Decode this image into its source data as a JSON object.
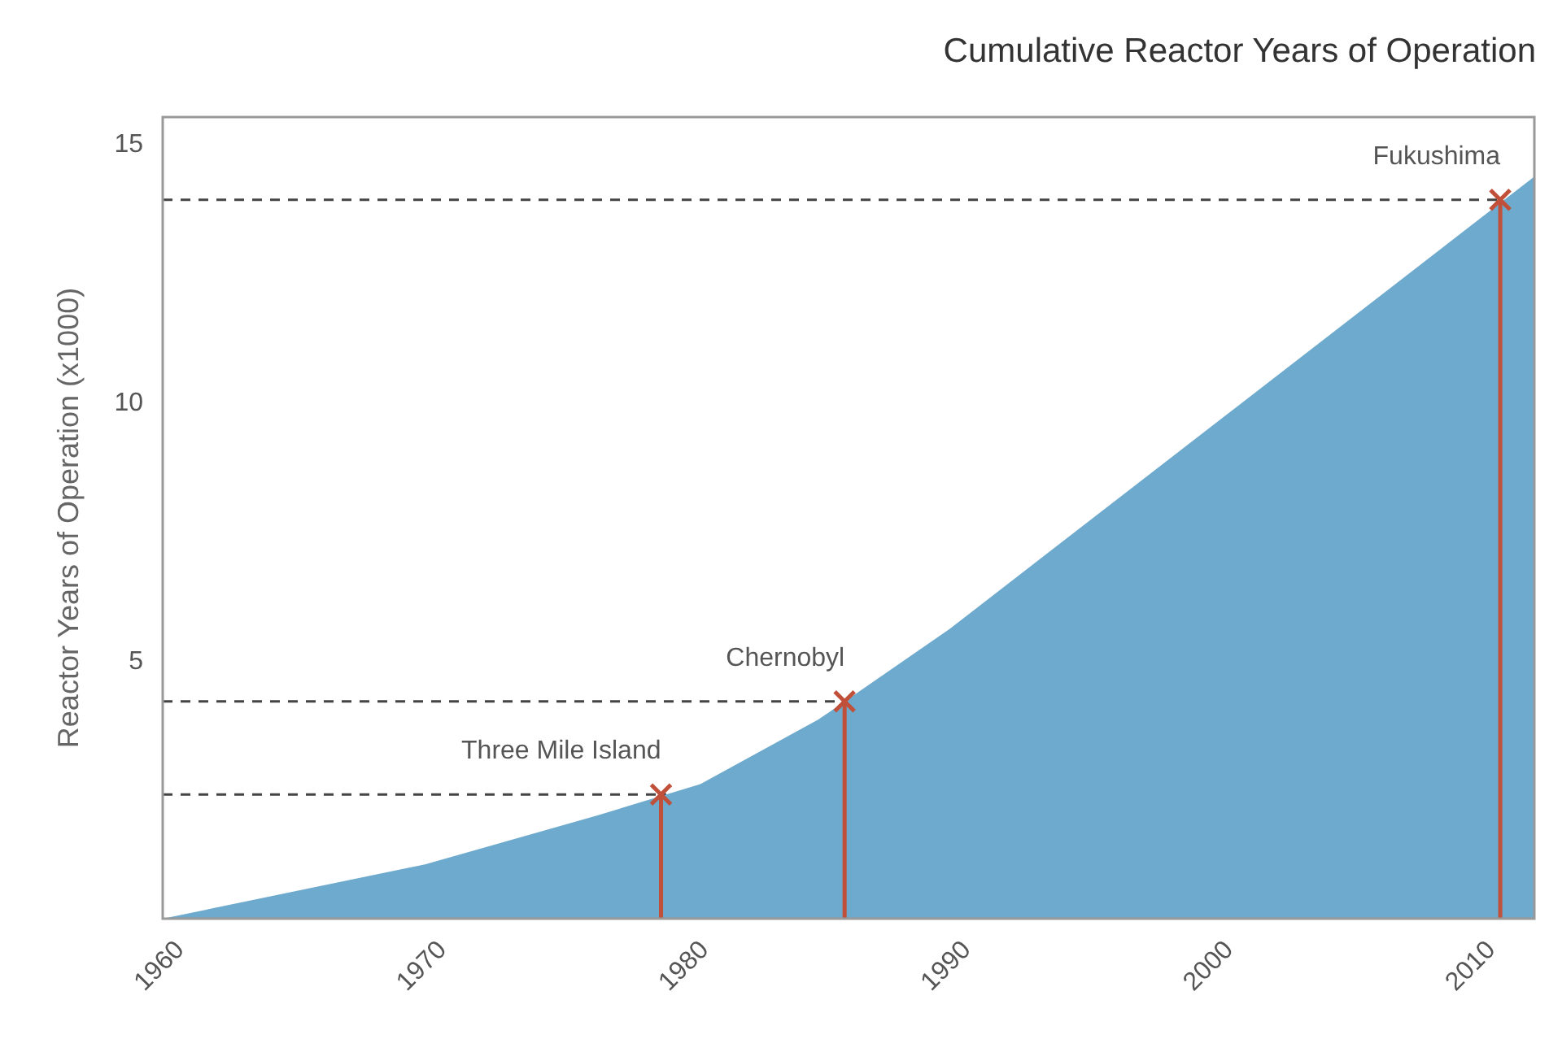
{
  "chart_data": {
    "type": "area",
    "title": "Cumulative Reactor Years of Operation",
    "ylabel": "Reactor Years of Operation (x1000)",
    "xlim": [
      1960,
      2012.3
    ],
    "xticks": [
      1960,
      1970,
      1980,
      1990,
      2000,
      2010
    ],
    "ylim": [
      0,
      15.5
    ],
    "yticks": [
      5,
      10,
      15
    ],
    "grid": false,
    "series": [
      {
        "color": "#6eaacd",
        "x": [
          1960,
          1970,
          1976.6,
          1980.5,
          1985,
          1990,
          2012.3
        ],
        "values": [
          0,
          1.05,
          2.0,
          2.6,
          3.85,
          5.6,
          14.35
        ]
      },
      {
        "type": "lollipop",
        "color": "#c0503a",
        "marker": "cross",
        "x": [
          1979,
          1986,
          2011
        ],
        "values": [
          2.4,
          4.2,
          13.9
        ]
      }
    ],
    "ref_lines": [
      {
        "axis": "y",
        "value": 2.4,
        "color": "#444444",
        "line_style": "dashed"
      },
      {
        "axis": "y",
        "value": 4.2,
        "color": "#444444",
        "line_style": "dashed"
      },
      {
        "axis": "y",
        "value": 13.9,
        "color": "#444444",
        "line_style": "dashed"
      }
    ],
    "annotations": [
      {
        "text": "Three Mile Island",
        "x": 1979,
        "y": 2.4
      },
      {
        "text": "Chernobyl",
        "x": 1986,
        "y": 4.2
      },
      {
        "text": "Fukushima",
        "x": 2011,
        "y": 13.9
      }
    ]
  }
}
